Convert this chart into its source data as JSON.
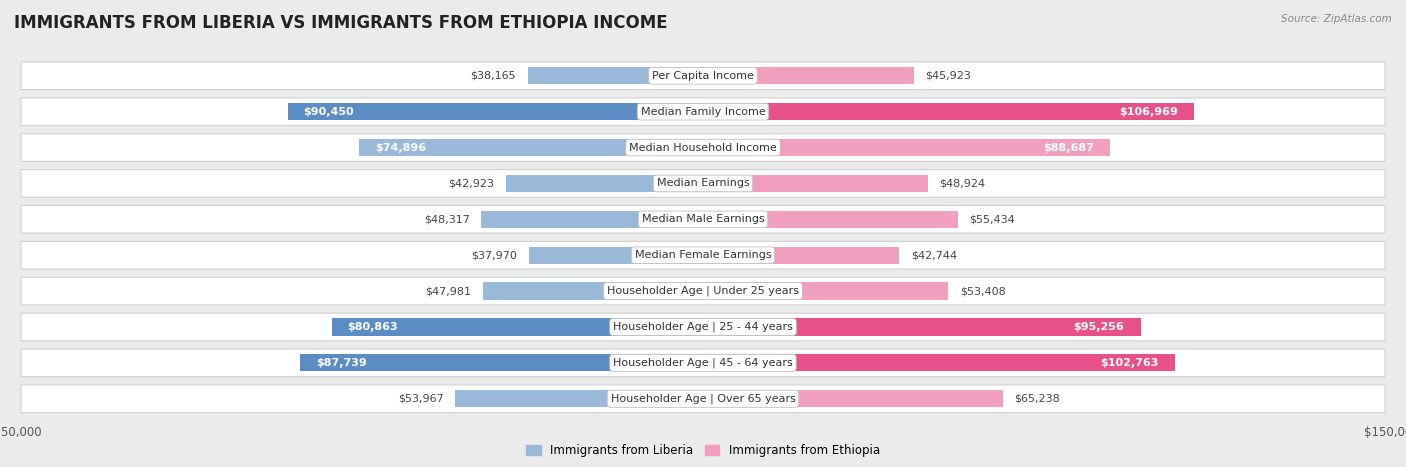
{
  "title": "IMMIGRANTS FROM LIBERIA VS IMMIGRANTS FROM ETHIOPIA INCOME",
  "source": "Source: ZipAtlas.com",
  "categories": [
    "Per Capita Income",
    "Median Family Income",
    "Median Household Income",
    "Median Earnings",
    "Median Male Earnings",
    "Median Female Earnings",
    "Householder Age | Under 25 years",
    "Householder Age | 25 - 44 years",
    "Householder Age | 45 - 64 years",
    "Householder Age | Over 65 years"
  ],
  "liberia_values": [
    38165,
    90450,
    74896,
    42923,
    48317,
    37970,
    47981,
    80863,
    87739,
    53967
  ],
  "ethiopia_values": [
    45923,
    106969,
    88687,
    48924,
    55434,
    42744,
    53408,
    95256,
    102763,
    65238
  ],
  "liberia_labels": [
    "$38,165",
    "$90,450",
    "$74,896",
    "$42,923",
    "$48,317",
    "$37,970",
    "$47,981",
    "$80,863",
    "$87,739",
    "$53,967"
  ],
  "ethiopia_labels": [
    "$45,923",
    "$106,969",
    "$88,687",
    "$48,924",
    "$55,434",
    "$42,744",
    "$53,408",
    "$95,256",
    "$102,763",
    "$65,238"
  ],
  "liberia_color_light": "#9ab8d8",
  "liberia_color_dark": "#5b8cc4",
  "ethiopia_color_light": "#f0a0be",
  "ethiopia_color_dark": "#e8508a",
  "max_value": 150000,
  "background_color": "#ebebeb",
  "row_bg_color": "#ffffff",
  "row_border_color": "#d0d0d0",
  "title_fontsize": 12,
  "label_fontsize": 8,
  "category_fontsize": 8,
  "axis_label_fontsize": 8.5,
  "legend_fontsize": 8.5,
  "liberia_dark_indices": [
    1,
    7,
    8
  ],
  "ethiopia_dark_indices": [
    1,
    7,
    8
  ],
  "liberia_inside_indices": [
    1,
    2,
    7,
    8
  ],
  "ethiopia_inside_indices": [
    1,
    2,
    7,
    8
  ]
}
